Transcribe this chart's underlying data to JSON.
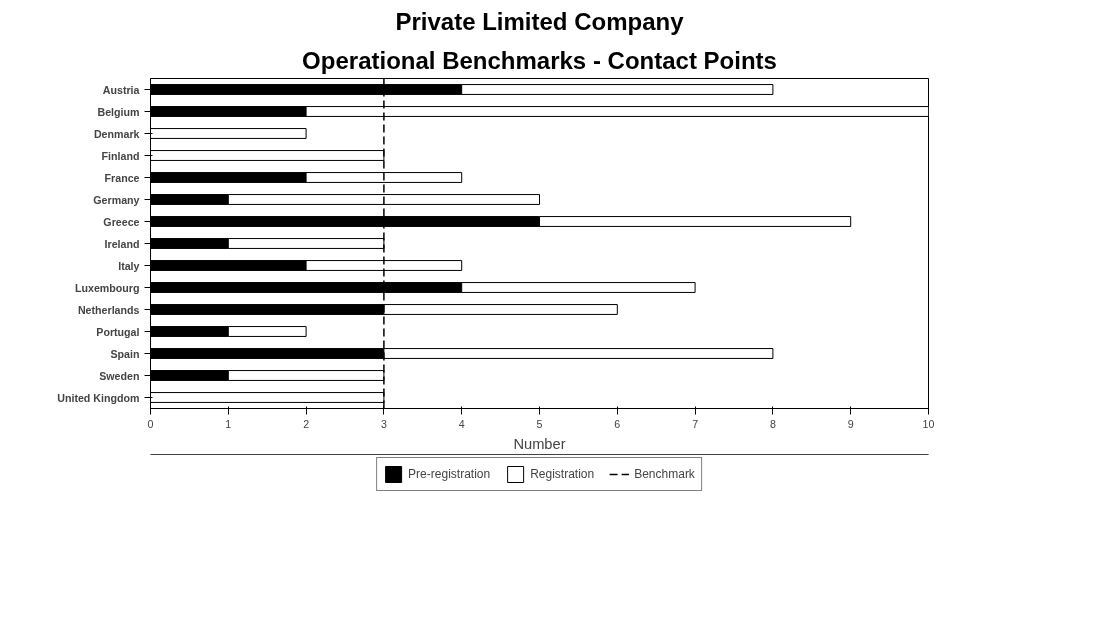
{
  "chart_data": {
    "type": "bar",
    "orientation": "horizontal",
    "stacked": true,
    "title": "Private Limited Company",
    "subtitle": "Operational Benchmarks - Contact Points",
    "xlabel": "Number",
    "categories": [
      "Austria",
      "Belgium",
      "Denmark",
      "Finland",
      "France",
      "Germany",
      "Greece",
      "Ireland",
      "Italy",
      "Luxembourg",
      "Netherlands",
      "Portugal",
      "Spain",
      "Sweden",
      "United Kingdom"
    ],
    "series": [
      {
        "name": "Pre-registration",
        "color": "#000000",
        "values": [
          4,
          2,
          0,
          0,
          2,
          1,
          5,
          1,
          2,
          4,
          3,
          1,
          3,
          1,
          0
        ]
      },
      {
        "name": "Registration",
        "color": "#ffffff",
        "values": [
          4,
          8,
          2,
          3,
          2,
          4,
          4,
          2,
          2,
          3,
          3,
          1,
          5,
          2,
          3
        ]
      }
    ],
    "xlim": [
      0,
      10
    ],
    "xticks": [
      0,
      1,
      2,
      3,
      4,
      5,
      6,
      7,
      8,
      9,
      10
    ],
    "ref_lines": [
      {
        "axis": "x",
        "value": 3,
        "label": "Benchmark",
        "color": "#000000",
        "line_style": "dashed"
      }
    ],
    "legend": "bottom",
    "grid": false
  }
}
